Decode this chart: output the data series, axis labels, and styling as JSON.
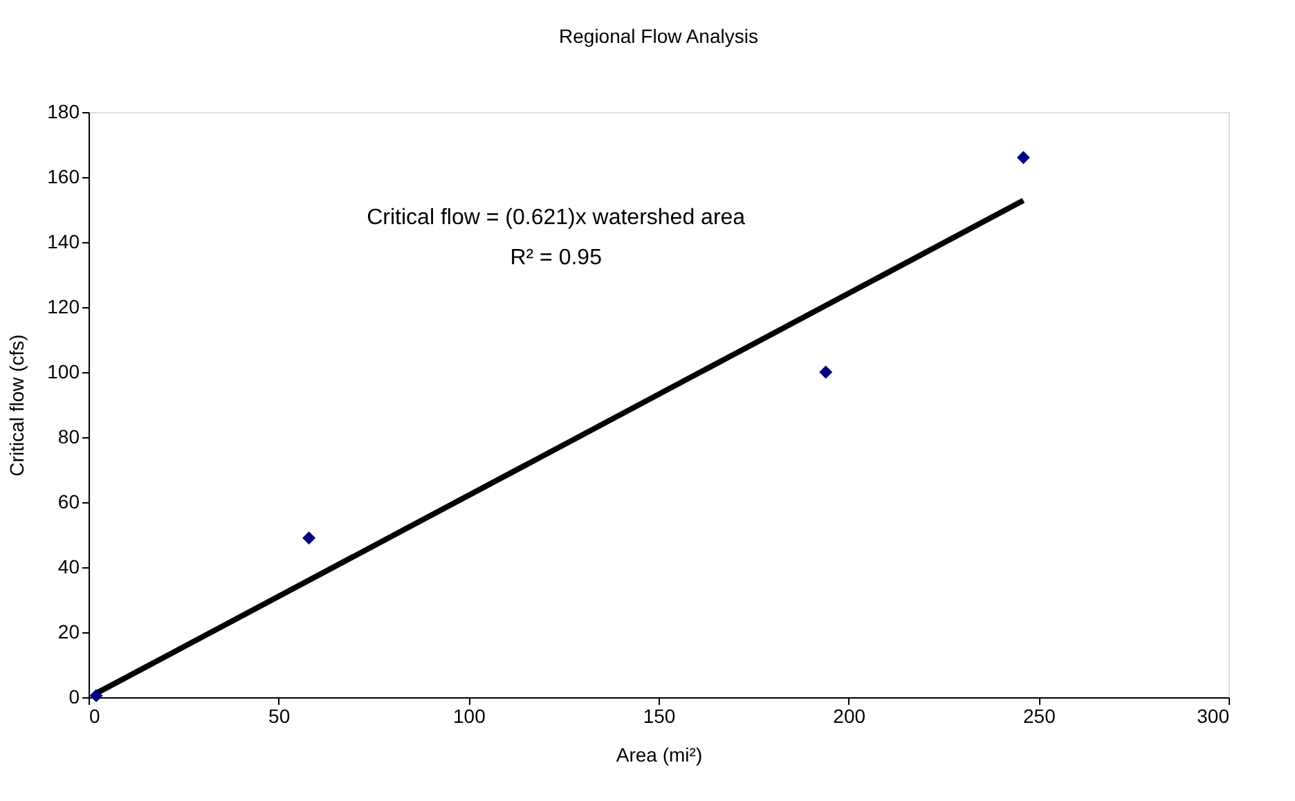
{
  "chart_data": {
    "type": "scatter",
    "title": "Regional Flow Analysis",
    "xlabel": "Area (mi²)",
    "ylabel": "Critical flow  (cfs)",
    "annotations": [
      "Critical flow =  (0.621)x watershed area",
      "R² = 0.95"
    ],
    "series": [
      {
        "color": "#000080",
        "marker": "diamond",
        "x": [
          2,
          58,
          194,
          246
        ],
        "values": [
          0.5,
          49,
          100,
          166
        ]
      },
      {
        "type": "line",
        "color": "#000000",
        "marker": "none",
        "line_style": "solid",
        "x": [
          2,
          246
        ],
        "values": [
          1.2,
          152.8
        ]
      }
    ],
    "xlim": [
      0,
      300
    ],
    "xticks": [
      0,
      50,
      100,
      150,
      200,
      250,
      300
    ],
    "ylim": [
      0,
      180
    ],
    "yticks": [
      0,
      20,
      40,
      60,
      80,
      100,
      120,
      140,
      160,
      180
    ],
    "grid": false
  }
}
